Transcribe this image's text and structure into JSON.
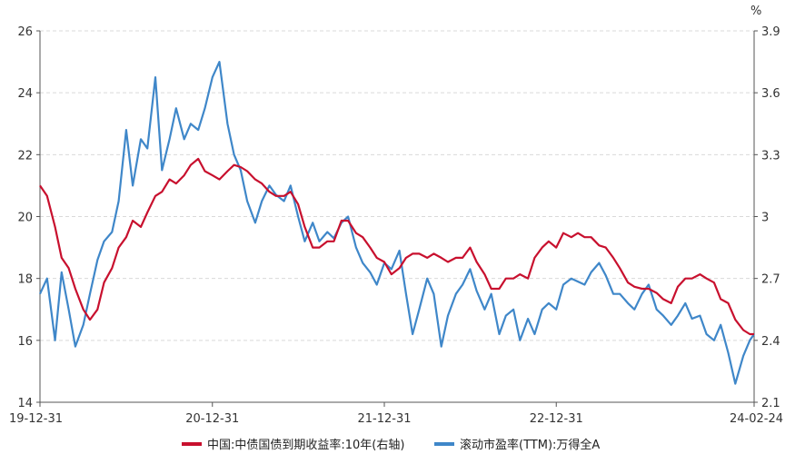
{
  "chart_data": {
    "type": "line",
    "title": "",
    "right_axis_unit": "%",
    "x_tick_labels": [
      "19-12-31",
      "20-12-31",
      "21-12-31",
      "22-12-31",
      "24-02-24"
    ],
    "left_axis": {
      "ylim": [
        14,
        26
      ],
      "ticks": [
        14,
        16,
        18,
        20,
        22,
        24,
        26
      ]
    },
    "right_axis": {
      "ylim": [
        2.1,
        3.9
      ],
      "ticks": [
        "2.1",
        "2.4",
        "2.7",
        "3",
        "3.3",
        "3.6",
        "3.9"
      ]
    },
    "grid": true,
    "legend_position": "bottom",
    "series": [
      {
        "name": "中国:中债国债到期收益率:10年(右轴)",
        "axis": "right",
        "color": "#c8102e",
        "x": [
          "2019-12-31",
          "2020-01-15",
          "2020-02-01",
          "2020-02-15",
          "2020-03-01",
          "2020-03-15",
          "2020-04-01",
          "2020-04-15",
          "2020-05-01",
          "2020-05-15",
          "2020-06-01",
          "2020-06-15",
          "2020-07-01",
          "2020-07-15",
          "2020-08-01",
          "2020-08-15",
          "2020-09-01",
          "2020-09-15",
          "2020-10-01",
          "2020-10-15",
          "2020-11-01",
          "2020-11-15",
          "2020-12-01",
          "2020-12-15",
          "2020-12-31",
          "2021-01-15",
          "2021-02-01",
          "2021-02-15",
          "2021-03-01",
          "2021-03-15",
          "2021-04-01",
          "2021-04-15",
          "2021-05-01",
          "2021-05-15",
          "2021-06-01",
          "2021-06-15",
          "2021-07-01",
          "2021-07-15",
          "2021-08-01",
          "2021-08-15",
          "2021-09-01",
          "2021-09-15",
          "2021-10-01",
          "2021-10-15",
          "2021-11-01",
          "2021-11-15",
          "2021-12-01",
          "2021-12-15",
          "2021-12-31",
          "2022-01-15",
          "2022-02-01",
          "2022-02-15",
          "2022-03-01",
          "2022-03-15",
          "2022-04-01",
          "2022-04-15",
          "2022-05-01",
          "2022-05-15",
          "2022-06-01",
          "2022-06-15",
          "2022-07-01",
          "2022-07-15",
          "2022-08-01",
          "2022-08-15",
          "2022-09-01",
          "2022-09-15",
          "2022-10-01",
          "2022-10-15",
          "2022-11-01",
          "2022-11-15",
          "2022-12-01",
          "2022-12-15",
          "2022-12-31",
          "2023-01-15",
          "2023-02-01",
          "2023-02-15",
          "2023-03-01",
          "2023-03-15",
          "2023-04-01",
          "2023-04-15",
          "2023-05-01",
          "2023-05-15",
          "2023-06-01",
          "2023-06-15",
          "2023-07-01",
          "2023-07-15",
          "2023-08-01",
          "2023-08-15",
          "2023-09-01",
          "2023-09-15",
          "2023-10-01",
          "2023-10-15",
          "2023-11-01",
          "2023-11-15",
          "2023-12-01",
          "2023-12-15",
          "2023-12-31",
          "2024-01-15",
          "2024-02-01",
          "2024-02-15",
          "2024-02-24"
        ],
        "values": [
          3.15,
          3.1,
          2.95,
          2.8,
          2.75,
          2.65,
          2.55,
          2.5,
          2.55,
          2.68,
          2.75,
          2.85,
          2.9,
          2.98,
          2.95,
          3.02,
          3.1,
          3.12,
          3.18,
          3.16,
          3.2,
          3.25,
          3.28,
          3.22,
          3.2,
          3.18,
          3.22,
          3.25,
          3.24,
          3.22,
          3.18,
          3.16,
          3.12,
          3.1,
          3.1,
          3.12,
          3.06,
          2.95,
          2.85,
          2.85,
          2.88,
          2.88,
          2.98,
          2.98,
          2.92,
          2.9,
          2.85,
          2.8,
          2.78,
          2.72,
          2.75,
          2.8,
          2.82,
          2.82,
          2.8,
          2.82,
          2.8,
          2.78,
          2.8,
          2.8,
          2.85,
          2.78,
          2.72,
          2.65,
          2.65,
          2.7,
          2.7,
          2.72,
          2.7,
          2.8,
          2.85,
          2.88,
          2.85,
          2.92,
          2.9,
          2.92,
          2.9,
          2.9,
          2.86,
          2.85,
          2.8,
          2.75,
          2.68,
          2.66,
          2.65,
          2.65,
          2.63,
          2.6,
          2.58,
          2.66,
          2.7,
          2.7,
          2.72,
          2.7,
          2.68,
          2.6,
          2.58,
          2.5,
          2.45,
          2.43,
          2.43
        ]
      },
      {
        "name": "滚动市盈率(TTM):万得全A",
        "axis": "left",
        "color": "#3f87c9",
        "x": [
          "2019-12-31",
          "2020-01-15",
          "2020-02-01",
          "2020-02-15",
          "2020-03-01",
          "2020-03-15",
          "2020-04-01",
          "2020-04-15",
          "2020-05-01",
          "2020-05-15",
          "2020-06-01",
          "2020-06-15",
          "2020-07-01",
          "2020-07-15",
          "2020-08-01",
          "2020-08-15",
          "2020-09-01",
          "2020-09-15",
          "2020-10-01",
          "2020-10-15",
          "2020-11-01",
          "2020-11-15",
          "2020-12-01",
          "2020-12-15",
          "2020-12-31",
          "2021-01-15",
          "2021-02-01",
          "2021-02-15",
          "2021-03-01",
          "2021-03-15",
          "2021-04-01",
          "2021-04-15",
          "2021-05-01",
          "2021-05-15",
          "2021-06-01",
          "2021-06-15",
          "2021-07-01",
          "2021-07-15",
          "2021-08-01",
          "2021-08-15",
          "2021-09-01",
          "2021-09-15",
          "2021-10-01",
          "2021-10-15",
          "2021-11-01",
          "2021-11-15",
          "2021-12-01",
          "2021-12-15",
          "2021-12-31",
          "2022-01-15",
          "2022-02-01",
          "2022-02-15",
          "2022-03-01",
          "2022-03-15",
          "2022-04-01",
          "2022-04-15",
          "2022-05-01",
          "2022-05-15",
          "2022-06-01",
          "2022-06-15",
          "2022-07-01",
          "2022-07-15",
          "2022-08-01",
          "2022-08-15",
          "2022-09-01",
          "2022-09-15",
          "2022-10-01",
          "2022-10-15",
          "2022-11-01",
          "2022-11-15",
          "2022-12-01",
          "2022-12-15",
          "2022-12-31",
          "2023-01-15",
          "2023-02-01",
          "2023-02-15",
          "2023-03-01",
          "2023-03-15",
          "2023-04-01",
          "2023-04-15",
          "2023-05-01",
          "2023-05-15",
          "2023-06-01",
          "2023-06-15",
          "2023-07-01",
          "2023-07-15",
          "2023-08-01",
          "2023-08-15",
          "2023-09-01",
          "2023-09-15",
          "2023-10-01",
          "2023-10-15",
          "2023-11-01",
          "2023-11-15",
          "2023-12-01",
          "2023-12-15",
          "2023-12-31",
          "2024-01-15",
          "2024-02-01",
          "2024-02-15",
          "2024-02-24"
        ],
        "values": [
          17.5,
          18.0,
          16.0,
          18.2,
          17.0,
          15.8,
          16.5,
          17.5,
          18.6,
          19.2,
          19.5,
          20.5,
          22.8,
          21.0,
          22.5,
          22.2,
          24.5,
          21.5,
          22.5,
          23.5,
          22.5,
          23.0,
          22.8,
          23.5,
          24.5,
          25.0,
          23.0,
          22.0,
          21.5,
          20.5,
          19.8,
          20.5,
          21.0,
          20.7,
          20.5,
          21.0,
          20.0,
          19.2,
          19.8,
          19.2,
          19.5,
          19.3,
          19.8,
          20.0,
          19.0,
          18.5,
          18.2,
          17.8,
          18.5,
          18.3,
          18.9,
          17.5,
          16.2,
          17.0,
          18.0,
          17.5,
          15.8,
          16.8,
          17.5,
          17.8,
          18.3,
          17.6,
          17.0,
          17.5,
          16.2,
          16.8,
          17.0,
          16.0,
          16.7,
          16.2,
          17.0,
          17.2,
          17.0,
          17.8,
          18.0,
          17.9,
          17.8,
          18.2,
          18.5,
          18.1,
          17.5,
          17.5,
          17.2,
          17.0,
          17.5,
          17.8,
          17.0,
          16.8,
          16.5,
          16.8,
          17.2,
          16.7,
          16.8,
          16.2,
          16.0,
          16.5,
          15.6,
          14.6,
          15.5,
          16.0,
          16.2
        ]
      }
    ]
  }
}
